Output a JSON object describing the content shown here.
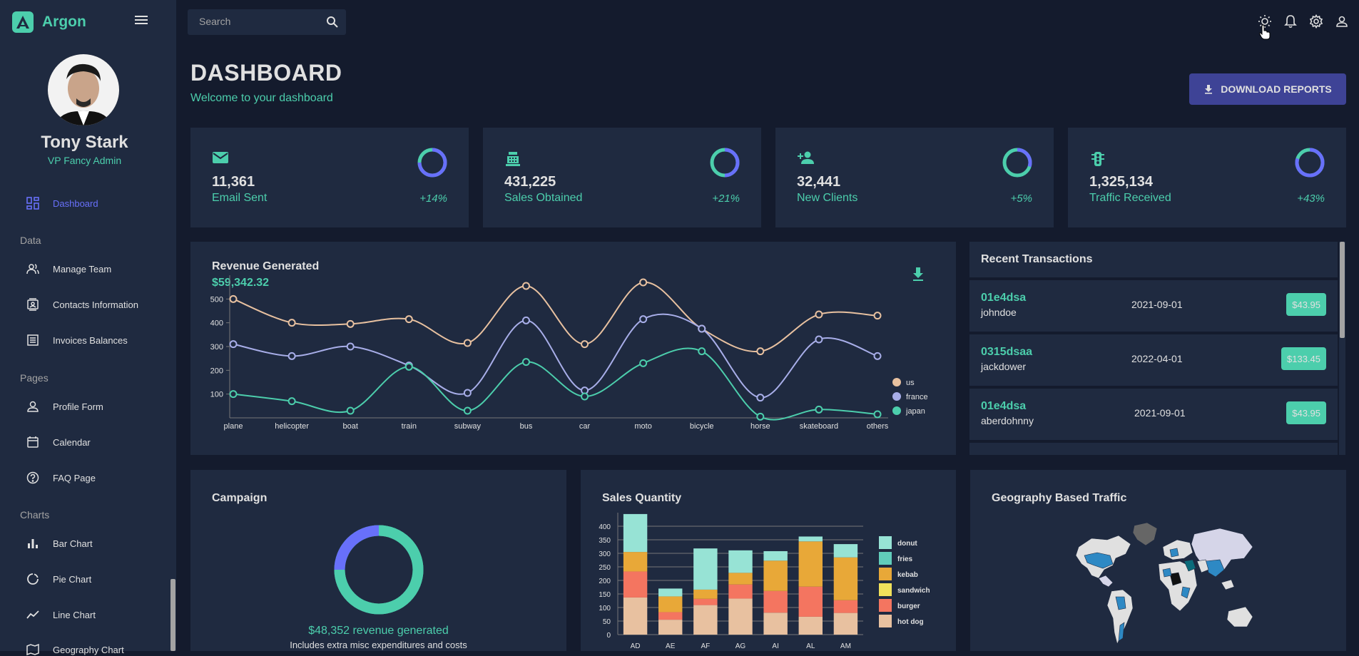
{
  "brand": {
    "name": "Argon"
  },
  "user": {
    "name": "Tony Stark",
    "role": "VP Fancy Admin"
  },
  "nav": {
    "dashboard": "Dashboard",
    "section_data": "Data",
    "manage_team": "Manage Team",
    "contacts": "Contacts Information",
    "invoices": "Invoices Balances",
    "section_pages": "Pages",
    "profile": "Profile Form",
    "calendar": "Calendar",
    "faq": "FAQ Page",
    "section_charts": "Charts",
    "bar": "Bar Chart",
    "pie": "Pie Chart",
    "line": "Line Chart",
    "geo": "Geography Chart"
  },
  "search": {
    "placeholder": "Search"
  },
  "header": {
    "title": "DASHBOARD",
    "subtitle": "Welcome to your dashboard",
    "download": "DOWNLOAD REPORTS"
  },
  "stats": [
    {
      "value": "11,361",
      "label": "Email Sent",
      "increase": "+14%",
      "progress": 0.75,
      "icon": "email-icon"
    },
    {
      "value": "431,225",
      "label": "Sales Obtained",
      "increase": "+21%",
      "progress": 0.5,
      "icon": "point-of-sale-icon"
    },
    {
      "value": "32,441",
      "label": "New Clients",
      "increase": "+5%",
      "progress": 0.3,
      "icon": "person-add-icon"
    },
    {
      "value": "1,325,134",
      "label": "Traffic Received",
      "increase": "+43%",
      "progress": 0.8,
      "icon": "traffic-icon"
    }
  ],
  "revenue": {
    "title": "Revenue Generated",
    "amount": "$59,342.32"
  },
  "transactions": {
    "title": "Recent Transactions",
    "rows": [
      {
        "id": "01e4dsa",
        "user": "johndoe",
        "date": "2021-09-01",
        "cost": "$43.95"
      },
      {
        "id": "0315dsaa",
        "user": "jackdower",
        "date": "2022-04-01",
        "cost": "$133.45"
      },
      {
        "id": "01e4dsa",
        "user": "aberdohnny",
        "date": "2021-09-01",
        "cost": "$43.95"
      }
    ]
  },
  "campaign": {
    "title": "Campaign",
    "revenue": "$48,352 revenue generated",
    "note": "Includes extra misc expenditures and costs",
    "progress": 0.75
  },
  "sales": {
    "title": "Sales Quantity"
  },
  "geo": {
    "title": "Geography Based Traffic"
  },
  "colors": {
    "primary": "#141b2d",
    "panel": "#1f2a40",
    "accent": "#4cceac",
    "blue": "#6870fa",
    "button": "#3e4396"
  },
  "chart_data": [
    {
      "type": "line",
      "x": [
        "plane",
        "helicopter",
        "boat",
        "train",
        "subway",
        "bus",
        "car",
        "moto",
        "bicycle",
        "horse",
        "skateboard",
        "others"
      ],
      "series": [
        {
          "name": "us",
          "color": "#e8c1a0",
          "values": [
            500,
            400,
            395,
            415,
            315,
            555,
            310,
            570,
            375,
            280,
            435,
            430
          ]
        },
        {
          "name": "france",
          "color": "#a8aee9",
          "values": [
            310,
            260,
            300,
            220,
            105,
            410,
            115,
            415,
            375,
            85,
            330,
            260
          ]
        },
        {
          "name": "japan",
          "color": "#4cceac",
          "values": [
            100,
            70,
            30,
            215,
            30,
            235,
            90,
            230,
            280,
            5,
            35,
            15
          ]
        }
      ],
      "yticks": [
        100,
        200,
        300,
        400,
        500
      ],
      "ylim": [
        0,
        600
      ],
      "legend": "right"
    },
    {
      "type": "bar",
      "stacked": true,
      "categories": [
        "AD",
        "AE",
        "AF",
        "AG",
        "AI",
        "AL",
        "AM"
      ],
      "series": [
        {
          "name": "hot dog",
          "color": "#e8c1a0",
          "values": [
            137,
            55,
            109,
            133,
            81,
            66,
            80
          ]
        },
        {
          "name": "burger",
          "color": "#f47560",
          "values": [
            96,
            28,
            23,
            52,
            80,
            111,
            47
          ]
        },
        {
          "name": "sandwich",
          "color": "#f1e15b",
          "values": [
            0,
            0,
            0,
            0,
            0,
            0,
            0
          ]
        },
        {
          "name": "kebab",
          "color": "#e8a838",
          "values": [
            72,
            58,
            34,
            43,
            112,
            167,
            158
          ]
        },
        {
          "name": "fries",
          "color": "#61cdbb",
          "values": [
            0,
            0,
            0,
            0,
            0,
            0,
            0
          ]
        },
        {
          "name": "donut",
          "color": "#97e3d5",
          "values": [
            140,
            29,
            152,
            83,
            35,
            18,
            49
          ]
        }
      ],
      "legend_order": [
        "donut",
        "fries",
        "kebab",
        "sandwich",
        "burger",
        "hot dog"
      ],
      "yticks": [
        0,
        50,
        100,
        150,
        200,
        250,
        300,
        350,
        400
      ],
      "ylim": [
        0,
        450
      ]
    }
  ]
}
